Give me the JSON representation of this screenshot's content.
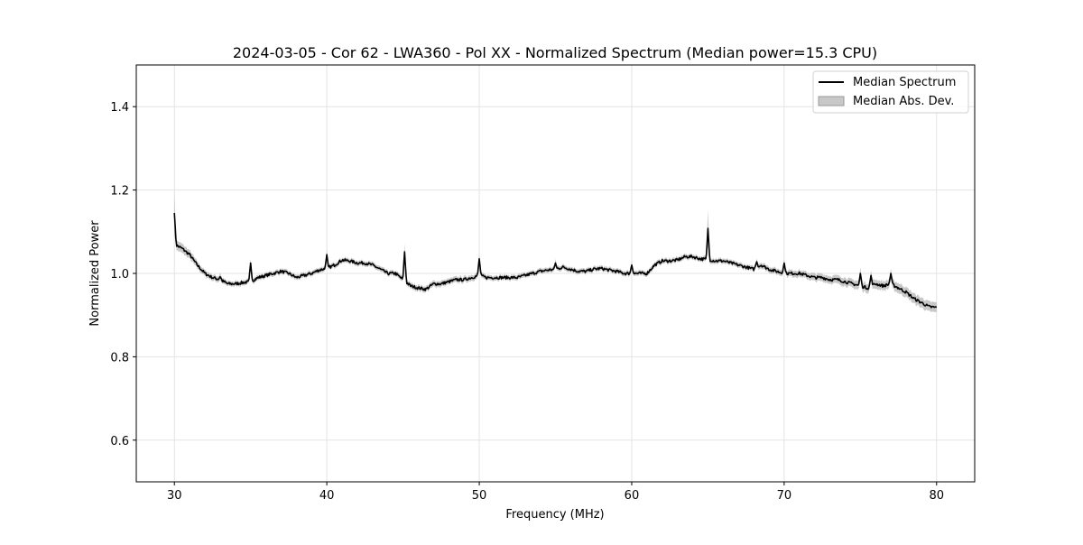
{
  "chart_data": {
    "type": "line",
    "title": "2024-03-05 - Cor 62 - LWA360 - Pol XX - Normalized Spectrum (Median power=15.3 CPU)",
    "xlabel": "Frequency (MHz)",
    "ylabel": "Normalized Power",
    "xlim": [
      27.5,
      82.5
    ],
    "ylim": [
      0.5,
      1.5
    ],
    "xticks": [
      30,
      40,
      50,
      60,
      70,
      80
    ],
    "yticks": [
      0.6,
      0.8,
      1.0,
      1.2,
      1.4
    ],
    "ytick_labels": [
      "0.6",
      "0.8",
      "1.0",
      "1.2",
      "1.4"
    ],
    "grid": true,
    "legend_position": "top-right",
    "legend": [
      "Median Spectrum",
      "Median Abs. Dev."
    ],
    "colors": {
      "line": "#000000",
      "band": "#b0b0b0"
    },
    "series": {
      "name": "Median Spectrum",
      "x": [
        30,
        30.5,
        31,
        31.5,
        32,
        32.5,
        33,
        33.5,
        34,
        34.5,
        35,
        35.5,
        36,
        36.5,
        37,
        37.5,
        38,
        38.5,
        39,
        39.5,
        40,
        40.5,
        41,
        41.5,
        42,
        42.5,
        43,
        43.5,
        44,
        44.5,
        45,
        45.5,
        46,
        46.5,
        47,
        47.5,
        48,
        48.5,
        49,
        49.5,
        50,
        50.5,
        51,
        51.5,
        52,
        52.5,
        53,
        53.5,
        54,
        54.5,
        55,
        55.5,
        56,
        56.5,
        57,
        57.5,
        58,
        58.5,
        59,
        59.5,
        60,
        60.5,
        61,
        61.5,
        62,
        62.5,
        63,
        63.5,
        64,
        64.5,
        65,
        65.5,
        66,
        66.5,
        67,
        67.5,
        68,
        68.5,
        69,
        69.5,
        70,
        70.5,
        71,
        71.5,
        72,
        72.5,
        73,
        73.5,
        74,
        74.5,
        75,
        75.5,
        76,
        76.5,
        77,
        77.5,
        78,
        78.5,
        79,
        79.5,
        80
      ],
      "y": [
        1.07,
        1.06,
        1.045,
        1.02,
        1.0,
        0.99,
        0.985,
        0.975,
        0.975,
        0.978,
        0.98,
        0.99,
        0.995,
        1.0,
        1.005,
        1.0,
        0.99,
        0.995,
        1.0,
        1.008,
        1.012,
        1.02,
        1.032,
        1.03,
        1.025,
        1.025,
        1.02,
        1.01,
        1.0,
        1.0,
        0.985,
        0.97,
        0.965,
        0.962,
        0.975,
        0.975,
        0.98,
        0.985,
        0.985,
        0.99,
        0.995,
        0.99,
        0.99,
        0.99,
        0.99,
        0.99,
        0.995,
        1.0,
        1.005,
        1.008,
        1.01,
        1.015,
        1.01,
        1.005,
        1.005,
        1.01,
        1.012,
        1.008,
        1.005,
        1.0,
        1.0,
        1.0,
        1.0,
        1.02,
        1.03,
        1.03,
        1.032,
        1.04,
        1.04,
        1.035,
        1.033,
        1.03,
        1.03,
        1.025,
        1.02,
        1.015,
        1.01,
        1.02,
        1.01,
        1.005,
        1.0,
        1.0,
        1.0,
        0.995,
        0.99,
        0.99,
        0.985,
        0.985,
        0.98,
        0.975,
        0.97,
        0.965,
        0.975,
        0.97,
        0.975,
        0.965,
        0.955,
        0.94,
        0.93,
        0.92,
        0.918
      ],
      "mad": [
        0.012,
        0.011,
        0.01,
        0.008,
        0.007,
        0.007,
        0.007,
        0.006,
        0.006,
        0.006,
        0.006,
        0.006,
        0.006,
        0.006,
        0.006,
        0.006,
        0.006,
        0.006,
        0.006,
        0.006,
        0.006,
        0.006,
        0.006,
        0.006,
        0.006,
        0.006,
        0.006,
        0.006,
        0.006,
        0.006,
        0.007,
        0.007,
        0.007,
        0.007,
        0.007,
        0.007,
        0.007,
        0.007,
        0.007,
        0.007,
        0.007,
        0.006,
        0.006,
        0.006,
        0.006,
        0.006,
        0.006,
        0.006,
        0.006,
        0.006,
        0.006,
        0.006,
        0.006,
        0.006,
        0.006,
        0.006,
        0.006,
        0.006,
        0.006,
        0.006,
        0.006,
        0.006,
        0.006,
        0.006,
        0.006,
        0.006,
        0.006,
        0.006,
        0.006,
        0.006,
        0.006,
        0.006,
        0.006,
        0.006,
        0.006,
        0.006,
        0.006,
        0.007,
        0.007,
        0.007,
        0.007,
        0.008,
        0.008,
        0.008,
        0.009,
        0.009,
        0.009,
        0.01,
        0.01,
        0.01,
        0.011,
        0.011,
        0.011,
        0.011,
        0.011,
        0.012,
        0.012,
        0.012,
        0.012,
        0.012,
        0.012
      ]
    },
    "spikes": [
      {
        "freq": 30.0,
        "peak": 1.145,
        "mad": 0.055
      },
      {
        "freq": 33.0,
        "peak": 0.992,
        "mad": 0.01
      },
      {
        "freq": 35.0,
        "peak": 1.025,
        "mad": 0.01
      },
      {
        "freq": 40.0,
        "peak": 1.045,
        "mad": 0.012
      },
      {
        "freq": 45.1,
        "peak": 1.052,
        "mad": 0.02
      },
      {
        "freq": 50.0,
        "peak": 1.035,
        "mad": 0.012
      },
      {
        "freq": 55.0,
        "peak": 1.025,
        "mad": 0.01
      },
      {
        "freq": 60.0,
        "peak": 1.02,
        "mad": 0.01
      },
      {
        "freq": 65.0,
        "peak": 1.108,
        "mad": 0.045
      },
      {
        "freq": 68.2,
        "peak": 1.028,
        "mad": 0.008
      },
      {
        "freq": 70.0,
        "peak": 1.025,
        "mad": 0.01
      },
      {
        "freq": 75.0,
        "peak": 1.0,
        "mad": 0.015
      },
      {
        "freq": 75.7,
        "peak": 0.995,
        "mad": 0.012
      },
      {
        "freq": 77.0,
        "peak": 1.0,
        "mad": 0.012
      }
    ]
  }
}
